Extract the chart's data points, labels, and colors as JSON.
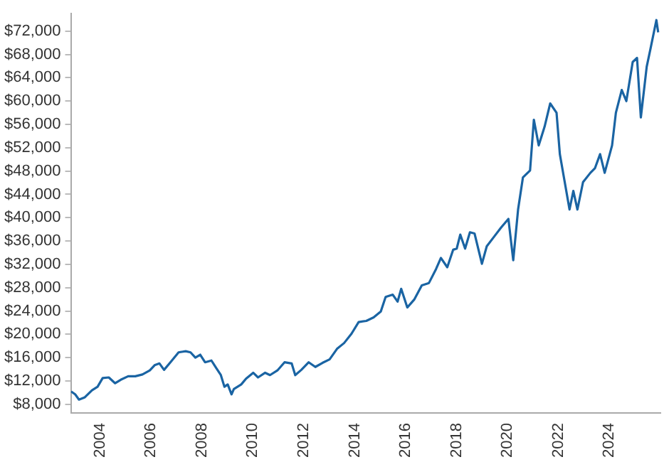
{
  "chart_data": {
    "type": "line",
    "xlim": [
      2002.85,
      2026
    ],
    "ylim": [
      6500,
      75000
    ],
    "xticks": [
      2004,
      2006,
      2008,
      2010,
      2012,
      2014,
      2016,
      2018,
      2020,
      2022,
      2024
    ],
    "yticks": [
      {
        "value": 8000,
        "label": "$8,000"
      },
      {
        "value": 12000,
        "label": "$12,000"
      },
      {
        "value": 16000,
        "label": "$16,000"
      },
      {
        "value": 20000,
        "label": "$20,000"
      },
      {
        "value": 24000,
        "label": "$24,000"
      },
      {
        "value": 28000,
        "label": "$28,000"
      },
      {
        "value": 32000,
        "label": "$32,000"
      },
      {
        "value": 36000,
        "label": "$36,000"
      },
      {
        "value": 40000,
        "label": "$40,000"
      },
      {
        "value": 44000,
        "label": "$44,000"
      },
      {
        "value": 48000,
        "label": "$48,000"
      },
      {
        "value": 52000,
        "label": "$52,000"
      },
      {
        "value": 56000,
        "label": "$56,000"
      },
      {
        "value": 60000,
        "label": "$60,000"
      },
      {
        "value": 64000,
        "label": "$64,000"
      },
      {
        "value": 68000,
        "label": "$68,000"
      },
      {
        "value": 72000,
        "label": "$72,000"
      }
    ],
    "grid": false,
    "legend": false,
    "marker": "none",
    "line_style": "solid",
    "series": [
      {
        "color": "#1a64a3",
        "x": [
          2002.86,
          2003.02,
          2003.17,
          2003.4,
          2003.68,
          2003.9,
          2004.1,
          2004.34,
          2004.59,
          2004.81,
          2005.1,
          2005.38,
          2005.66,
          2005.95,
          2006.14,
          2006.33,
          2006.51,
          2006.8,
          2007.08,
          2007.36,
          2007.55,
          2007.74,
          2007.93,
          2008.12,
          2008.37,
          2008.56,
          2008.74,
          2008.88,
          2009.01,
          2009.16,
          2009.25,
          2009.54,
          2009.73,
          2010.01,
          2010.2,
          2010.48,
          2010.67,
          2010.96,
          2011.24,
          2011.52,
          2011.66,
          2011.9,
          2012.19,
          2012.45,
          2012.73,
          2013.01,
          2013.3,
          2013.58,
          2013.87,
          2014.15,
          2014.45,
          2014.74,
          2015.02,
          2015.21,
          2015.49,
          2015.68,
          2015.82,
          2016.06,
          2016.34,
          2016.63,
          2016.91,
          2017.19,
          2017.38,
          2017.63,
          2017.86,
          2018.0,
          2018.14,
          2018.33,
          2018.52,
          2018.7,
          2018.99,
          2019.18,
          2019.46,
          2019.74,
          2020.03,
          2020.22,
          2020.41,
          2020.6,
          2020.88,
          2021.03,
          2021.22,
          2021.45,
          2021.67,
          2021.92,
          2022.05,
          2022.21,
          2022.43,
          2022.58,
          2022.74,
          2022.96,
          2023.25,
          2023.43,
          2023.63,
          2023.81,
          2024.1,
          2024.25,
          2024.48,
          2024.66,
          2024.91,
          2025.08,
          2025.23,
          2025.46,
          2025.61,
          2025.84,
          2025.91
        ],
        "values": [
          10200,
          9700,
          8800,
          9200,
          10400,
          11000,
          12500,
          12600,
          11600,
          12200,
          12800,
          12800,
          13100,
          13800,
          14700,
          15000,
          13900,
          15400,
          16900,
          17100,
          16900,
          16000,
          16500,
          15200,
          15500,
          14200,
          13000,
          11000,
          11400,
          9700,
          10600,
          11400,
          12400,
          13400,
          12600,
          13400,
          13000,
          13800,
          15200,
          15000,
          13000,
          13900,
          15200,
          14400,
          15100,
          15700,
          17500,
          18500,
          20100,
          22100,
          22300,
          22900,
          23900,
          26400,
          26800,
          25600,
          27800,
          24600,
          26000,
          28400,
          28800,
          31200,
          33100,
          31500,
          34500,
          34700,
          37100,
          34700,
          37500,
          37300,
          32100,
          35100,
          36700,
          38300,
          39800,
          32700,
          41400,
          46900,
          48100,
          56800,
          52400,
          55600,
          59600,
          58000,
          50900,
          46900,
          41400,
          44600,
          41400,
          46100,
          47700,
          48500,
          50900,
          47700,
          52400,
          58000,
          61900,
          60000,
          66700,
          67400,
          57200,
          65900,
          69000,
          73900,
          71800
        ]
      }
    ]
  }
}
